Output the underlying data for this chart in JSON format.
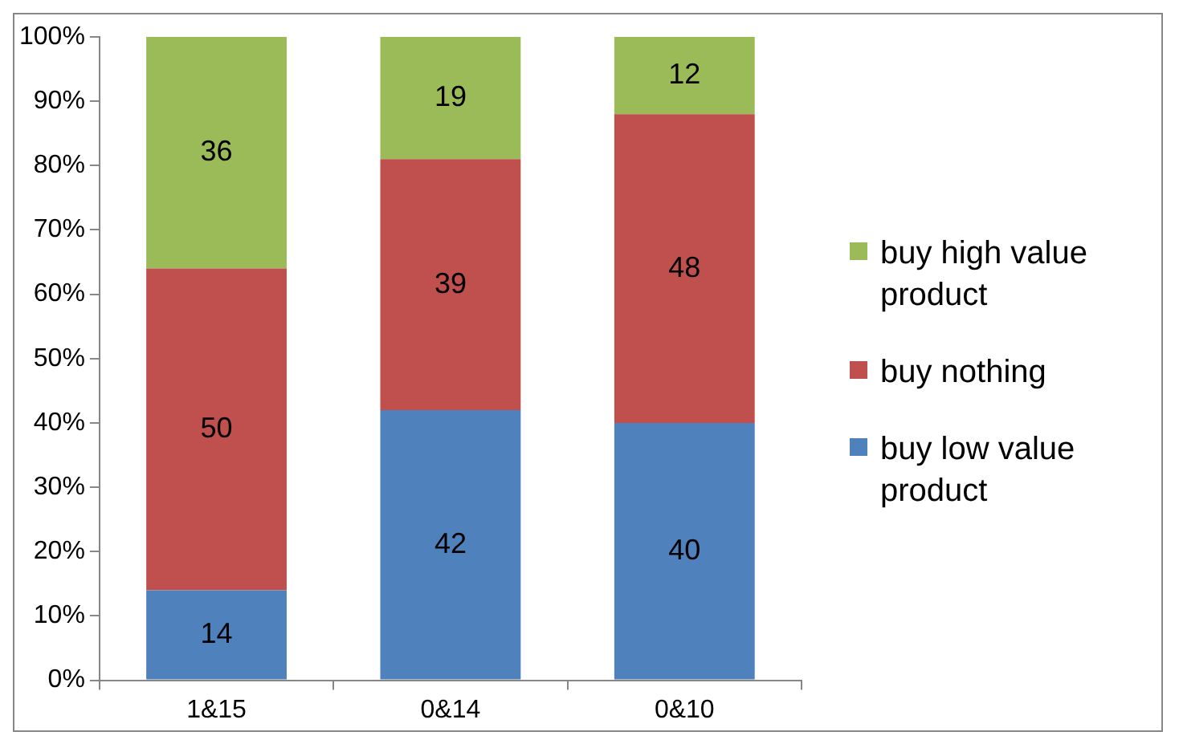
{
  "chart_data": {
    "type": "bar",
    "stacked": true,
    "categories": [
      "1&15",
      "0&14",
      "0&10"
    ],
    "series": [
      {
        "name": "buy low value product",
        "color": "#4f81bd",
        "values": [
          14,
          42,
          40
        ]
      },
      {
        "name": "buy nothing",
        "color": "#c0504d",
        "values": [
          50,
          39,
          48
        ]
      },
      {
        "name": "buy high value product",
        "color": "#9bbb59",
        "values": [
          36,
          19,
          12
        ]
      }
    ],
    "ylim": [
      0,
      100
    ],
    "yticks": [
      {
        "value": 0,
        "label": "0%"
      },
      {
        "value": 10,
        "label": "10%"
      },
      {
        "value": 20,
        "label": "20%"
      },
      {
        "value": 30,
        "label": "30%"
      },
      {
        "value": 40,
        "label": "40%"
      },
      {
        "value": 50,
        "label": "50%"
      },
      {
        "value": 60,
        "label": "60%"
      },
      {
        "value": 70,
        "label": "70%"
      },
      {
        "value": 80,
        "label": "80%"
      },
      {
        "value": 90,
        "label": "90%"
      },
      {
        "value": 100,
        "label": "100%"
      }
    ],
    "grid": false,
    "legend": "right",
    "data_labels": true
  }
}
